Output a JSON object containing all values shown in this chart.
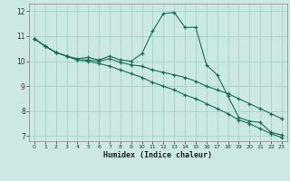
{
  "xlabel": "Humidex (Indice chaleur)",
  "xlim": [
    -0.5,
    23.5
  ],
  "ylim": [
    6.8,
    12.3
  ],
  "xticks": [
    0,
    1,
    2,
    3,
    4,
    5,
    6,
    7,
    8,
    9,
    10,
    11,
    12,
    13,
    14,
    15,
    16,
    17,
    18,
    19,
    20,
    21,
    22,
    23
  ],
  "yticks": [
    7,
    8,
    9,
    10,
    11,
    12
  ],
  "bg_color": "#cce8e4",
  "grid_color": "#aad4cc",
  "line_color": "#1a6b5a",
  "line1_x": [
    0,
    1,
    2,
    3,
    4,
    5,
    6,
    7,
    8,
    9,
    10,
    11,
    12,
    13,
    14,
    15,
    16,
    17,
    18,
    19,
    20,
    21,
    22,
    23
  ],
  "line1_y": [
    10.9,
    10.6,
    10.35,
    10.2,
    10.1,
    10.15,
    10.05,
    10.2,
    10.05,
    10.0,
    10.3,
    11.2,
    11.9,
    11.95,
    11.35,
    11.35,
    9.85,
    9.45,
    8.6,
    7.75,
    7.6,
    7.55,
    7.15,
    7.05
  ],
  "line2_x": [
    0,
    1,
    2,
    3,
    4,
    5,
    6,
    7,
    8,
    9,
    10,
    11,
    12,
    13,
    14,
    15,
    16,
    17,
    18,
    19,
    20,
    21,
    22,
    23
  ],
  "line2_y": [
    10.9,
    10.6,
    10.35,
    10.2,
    10.05,
    10.05,
    10.0,
    10.1,
    9.95,
    9.85,
    9.8,
    9.65,
    9.55,
    9.45,
    9.35,
    9.2,
    9.0,
    8.85,
    8.7,
    8.5,
    8.3,
    8.1,
    7.9,
    7.7
  ],
  "line3_x": [
    0,
    1,
    2,
    3,
    4,
    5,
    6,
    7,
    8,
    9,
    10,
    11,
    12,
    13,
    14,
    15,
    16,
    17,
    18,
    19,
    20,
    21,
    22,
    23
  ],
  "line3_y": [
    10.9,
    10.6,
    10.35,
    10.2,
    10.05,
    10.0,
    9.9,
    9.8,
    9.65,
    9.5,
    9.35,
    9.15,
    9.0,
    8.85,
    8.65,
    8.5,
    8.3,
    8.1,
    7.9,
    7.65,
    7.5,
    7.3,
    7.1,
    6.95
  ]
}
